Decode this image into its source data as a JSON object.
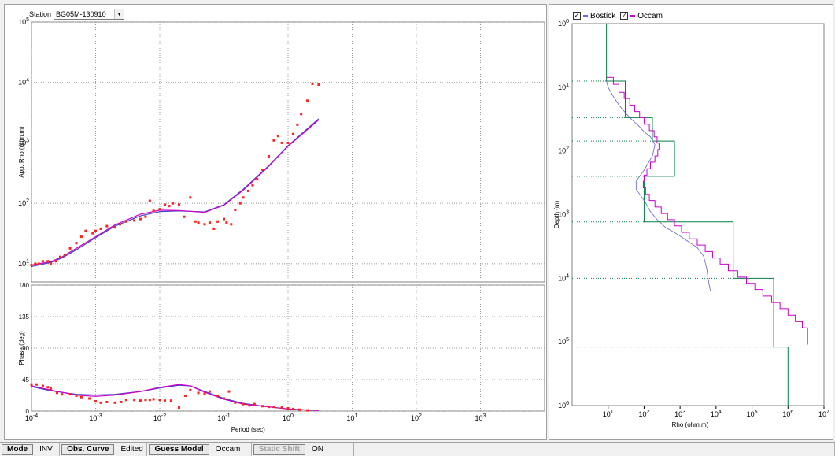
{
  "station": {
    "label": "Station",
    "value": "BG05M-130910"
  },
  "legend": {
    "items": [
      {
        "label": "Bostick",
        "checked": true,
        "color": "#6a6ad8"
      },
      {
        "label": "Occam",
        "checked": true,
        "color": "#cc00cc"
      }
    ]
  },
  "status_bar": {
    "items": [
      {
        "label": "Mode",
        "kind": "button"
      },
      {
        "label": "INV",
        "kind": "text"
      },
      {
        "label": "Obs. Curve",
        "kind": "button"
      },
      {
        "label": "Edited",
        "kind": "text"
      },
      {
        "label": "Guess Model",
        "kind": "button"
      },
      {
        "label": "Occam",
        "kind": "text"
      },
      {
        "label": "Static Shift",
        "kind": "disabled"
      },
      {
        "label": "ON",
        "kind": "text"
      }
    ]
  },
  "chart_data": [
    {
      "type": "scatter",
      "ylabel": "App. Rho (ohm.m)",
      "xscale": "log",
      "yscale": "log",
      "xlim": [
        0.0001,
        10000
      ],
      "ylim": [
        5,
        100000
      ],
      "x_ticks": [
        "10-4",
        "10-3",
        "10-2",
        "10-1",
        "100",
        "101",
        "102",
        "103"
      ],
      "y_ticks": [
        "101",
        "102",
        "103",
        "104",
        "105"
      ],
      "grid": true,
      "observed": {
        "color": "#ff2020",
        "x": [
          0.0001,
          0.000115,
          0.00013,
          0.00015,
          0.00018,
          0.0002,
          0.00024,
          0.00028,
          0.00033,
          0.0004,
          0.0005,
          0.0006,
          0.0007,
          0.0009,
          0.001,
          0.0012,
          0.0015,
          0.002,
          0.0024,
          0.003,
          0.004,
          0.005,
          0.006,
          0.007,
          0.008,
          0.01,
          0.012,
          0.014,
          0.016,
          0.02,
          0.024,
          0.03,
          0.036,
          0.04,
          0.05,
          0.06,
          0.07,
          0.08,
          0.1,
          0.11,
          0.13,
          0.15,
          0.18,
          0.2,
          0.24,
          0.28,
          0.33,
          0.4,
          0.5,
          0.6,
          0.7,
          0.8,
          1.0,
          1.2,
          1.4,
          1.6,
          2.0,
          2.4,
          3.0
        ],
        "y": [
          9.5,
          10,
          10,
          11,
          11,
          10,
          11,
          13,
          14,
          18,
          22,
          28,
          35,
          32,
          35,
          38,
          42,
          40,
          45,
          50,
          52,
          55,
          60,
          110,
          75,
          80,
          95,
          90,
          100,
          95,
          60,
          125,
          50,
          48,
          45,
          48,
          38,
          50,
          55,
          48,
          45,
          78,
          100,
          125,
          160,
          200,
          250,
          360,
          600,
          1100,
          1300,
          1000,
          1000,
          1400,
          2000,
          3000,
          5000,
          9500,
          9200
        ]
      },
      "series": [
        {
          "name": "Bostick",
          "color": "#4040c0",
          "x": [
            0.0001,
            0.0002,
            0.0003,
            0.0005,
            0.001,
            0.002,
            0.005,
            0.01,
            0.02,
            0.05,
            0.1,
            0.2,
            0.5,
            1.0,
            3.0
          ],
          "y": [
            9,
            10.5,
            12.5,
            17,
            27,
            42,
            62,
            73,
            75,
            72,
            95,
            170,
            420,
            900,
            2500
          ]
        },
        {
          "name": "Occam",
          "color": "#cc00cc",
          "x": [
            0.0001,
            0.0002,
            0.0003,
            0.0005,
            0.001,
            0.002,
            0.005,
            0.01,
            0.02,
            0.05,
            0.1,
            0.2,
            0.5,
            1.0,
            3.0
          ],
          "y": [
            9.5,
            10.8,
            13,
            18,
            28,
            44,
            66,
            77,
            76,
            71,
            93,
            165,
            410,
            880,
            2400
          ]
        }
      ]
    },
    {
      "type": "scatter",
      "ylabel": "Phase (deg)",
      "xlabel": "Period (sec)",
      "xscale": "log",
      "xlim": [
        0.0001,
        10000
      ],
      "ylim": [
        0,
        180
      ],
      "x_ticks": [
        "10-4",
        "10-3",
        "10-2",
        "10-1",
        "100",
        "101",
        "102",
        "103"
      ],
      "y_ticks": [
        "0",
        "45",
        "90",
        "135",
        "180"
      ],
      "grid": true,
      "observed": {
        "color": "#ff2020",
        "x": [
          0.0001,
          0.00012,
          0.00015,
          0.00018,
          0.0002,
          0.00025,
          0.0003,
          0.0004,
          0.0005,
          0.0006,
          0.0008,
          0.001,
          0.0012,
          0.0015,
          0.002,
          0.0025,
          0.003,
          0.004,
          0.005,
          0.006,
          0.007,
          0.008,
          0.01,
          0.012,
          0.015,
          0.02,
          0.025,
          0.03,
          0.04,
          0.05,
          0.06,
          0.08,
          0.1,
          0.12,
          0.15,
          0.2,
          0.25,
          0.3,
          0.4,
          0.5,
          0.6,
          0.8,
          1.0,
          1.2,
          1.5,
          2.0
        ],
        "y": [
          38,
          38,
          36,
          34,
          32,
          26,
          24,
          24,
          22,
          20,
          18,
          14,
          12,
          13,
          12,
          13,
          16,
          16,
          15,
          16,
          16,
          17,
          16,
          15,
          15,
          5,
          22,
          30,
          26,
          25,
          28,
          22,
          18,
          28,
          12,
          10,
          8,
          10,
          7,
          6,
          6,
          5,
          4,
          3,
          2,
          1
        ]
      },
      "series": [
        {
          "name": "Bostick",
          "color": "#4040c0",
          "x": [
            0.0001,
            0.0002,
            0.0005,
            0.001,
            0.002,
            0.005,
            0.01,
            0.02,
            0.03,
            0.05,
            0.1,
            0.2,
            0.5,
            1.0,
            2.0,
            3.0
          ],
          "y": [
            35,
            29,
            24,
            23,
            24,
            28,
            33,
            37,
            36,
            28,
            18,
            11,
            6,
            3,
            1.5,
            1
          ]
        },
        {
          "name": "Occam",
          "color": "#cc00cc",
          "x": [
            0.0001,
            0.0002,
            0.0005,
            0.001,
            0.002,
            0.005,
            0.01,
            0.02,
            0.03,
            0.05,
            0.1,
            0.2,
            0.5,
            1.0,
            2.0,
            3.0
          ],
          "y": [
            36,
            30,
            23,
            21,
            23,
            28,
            34,
            38,
            36,
            27,
            17,
            10,
            6,
            3,
            1.5,
            1
          ]
        }
      ]
    },
    {
      "type": "line",
      "ylabel": "Depth (m)",
      "xlabel": "Rho (ohm.m)",
      "xscale": "log",
      "yscale": "log",
      "y_inverted": true,
      "xlim": [
        1,
        10000000
      ],
      "ylim": [
        1,
        1000000
      ],
      "x_ticks": [
        "101",
        "102",
        "103",
        "104",
        "105",
        "106",
        "107"
      ],
      "y_ticks": [
        "100",
        "101",
        "102",
        "103",
        "104",
        "105",
        "106"
      ],
      "grid": "horizontal-dotted",
      "series": [
        {
          "name": "Guess Model",
          "color": "#008040",
          "kind": "step",
          "rho": [
            9,
            30,
            170,
            700,
            100,
            30000,
            400000,
            1000000
          ],
          "depth_top": [
            1,
            8,
            30,
            70,
            250,
            1300,
            10000,
            120000
          ],
          "depth_bottom": [
            8,
            30,
            70,
            250,
            1300,
            10000,
            120000,
            1000000
          ]
        },
        {
          "name": "Occam",
          "color": "#cc00cc",
          "kind": "step",
          "rho": [
            9,
            14,
            20,
            28,
            40,
            55,
            75,
            100,
            140,
            190,
            230,
            260,
            240,
            200,
            150,
            120,
            100,
            95,
            110,
            140,
            200,
            300,
            450,
            700,
            1100,
            1800,
            3000,
            5000,
            8000,
            13000,
            22000,
            40000,
            70000,
            120000,
            200000,
            350000,
            600000,
            1000000,
            1600000,
            2500000,
            3500000
          ],
          "depth": [
            7,
            9,
            12,
            15,
            19,
            24,
            30,
            38,
            48,
            60,
            75,
            95,
            120,
            150,
            190,
            240,
            300,
            380,
            480,
            600,
            760,
            960,
            1200,
            1500,
            1900,
            2400,
            3000,
            3800,
            4800,
            6000,
            7600,
            9600,
            12000,
            15000,
            19000,
            24000,
            30000,
            38000,
            48000,
            60000,
            110000
          ]
        },
        {
          "name": "Bostick",
          "color": "#6060d0",
          "kind": "smooth",
          "rho": [
            9,
            10,
            14,
            20,
            30,
            45,
            70,
            100,
            150,
            200,
            170,
            100,
            60,
            60,
            80,
            110,
            150,
            230,
            400,
            800,
            1600,
            3000,
            4500,
            5500,
            6000,
            6500,
            7000
          ],
          "depth": [
            8,
            10,
            14,
            19,
            25,
            32,
            40,
            50,
            60,
            80,
            120,
            200,
            300,
            400,
            500,
            650,
            900,
            1200,
            1600,
            2000,
            2600,
            3300,
            4500,
            7000,
            10000,
            13000,
            16000
          ]
        }
      ]
    }
  ]
}
